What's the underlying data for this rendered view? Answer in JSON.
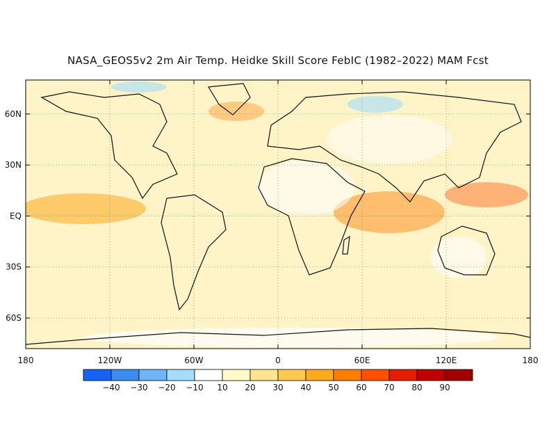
{
  "title": "NASA_GEOS5v2 2m Air Temp. Heidke Skill Score FebIC (1982–2022) MAM Fcst",
  "map": {
    "lat_labels": [
      "60N",
      "30N",
      "EQ",
      "30S",
      "60S"
    ],
    "lat_values": [
      60,
      30,
      0,
      -30,
      -60
    ],
    "lon_labels": [
      "180",
      "120W",
      "60W",
      "0",
      "60E",
      "120E",
      "180"
    ],
    "lon_values": [
      -180,
      -120,
      -60,
      0,
      60,
      120,
      180
    ],
    "lon_range": [
      -180,
      180
    ],
    "lat_range": [
      -78,
      80
    ],
    "grid": "dotted"
  },
  "legend": {
    "labels": [
      "−40",
      "−30",
      "−20",
      "−10",
      "10",
      "20",
      "30",
      "40",
      "50",
      "60",
      "70",
      "80",
      "90"
    ],
    "colors": [
      "#1464f4",
      "#3c8cf0",
      "#6eb4f8",
      "#a4dcfc",
      "#ffffff",
      "#fffac8",
      "#ffe68c",
      "#ffc850",
      "#ffaa1e",
      "#ff7d00",
      "#ff5000",
      "#e61e00",
      "#c00000",
      "#a00000"
    ]
  }
}
